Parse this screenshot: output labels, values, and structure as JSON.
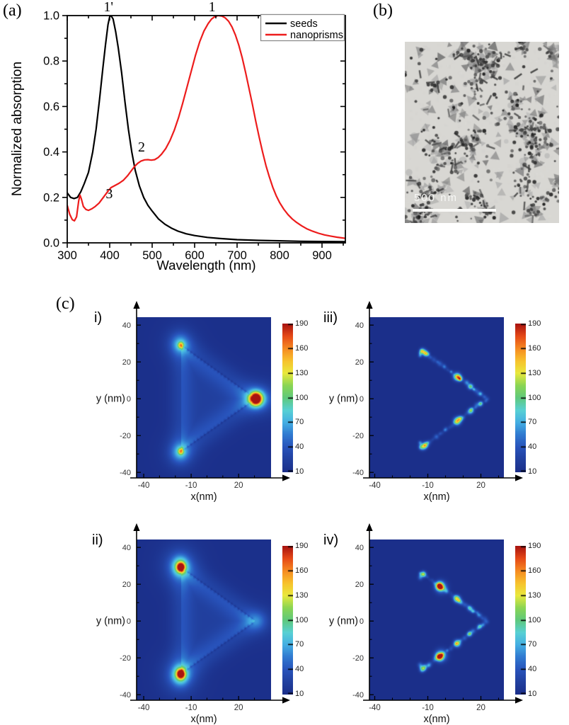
{
  "labels": {
    "a": "(a)",
    "b": "(b)",
    "c": "(c)",
    "i": "i)",
    "ii": "ii)",
    "iii": "iii)",
    "iv": "iv)"
  },
  "panel_b": {
    "scale_bar": "500 nm"
  },
  "colormap": {
    "stops": [
      [
        10,
        "#1b2f8a"
      ],
      [
        25,
        "#21409f"
      ],
      [
        40,
        "#2853bb"
      ],
      [
        55,
        "#3079d0"
      ],
      [
        70,
        "#44aee3"
      ],
      [
        85,
        "#58d0d4"
      ],
      [
        100,
        "#5fc97c"
      ],
      [
        115,
        "#8ad554"
      ],
      [
        130,
        "#e9e93d"
      ],
      [
        145,
        "#f7c22d"
      ],
      [
        160,
        "#f68a21"
      ],
      [
        175,
        "#e64917"
      ],
      [
        190,
        "#a81410"
      ]
    ]
  },
  "chart_data": [
    {
      "id": "absorption-spectra",
      "type": "line",
      "xlabel": "Wavelength (nm)",
      "ylabel": "Normalized absorption",
      "xlim": [
        300,
        955
      ],
      "ylim": [
        0.0,
        1.0
      ],
      "x_ticks": [
        300,
        400,
        500,
        600,
        700,
        800,
        900
      ],
      "x_minor_ticks": [
        350,
        450,
        550,
        650,
        750,
        850,
        950
      ],
      "y_ticks": [
        0.0,
        0.2,
        0.4,
        0.6,
        0.8,
        1.0
      ],
      "y_minor_ticks": [
        0.1,
        0.3,
        0.5,
        0.7,
        0.9
      ],
      "grid": false,
      "legend": {
        "position": "top-right",
        "entries": [
          {
            "label": "seeds",
            "color": "#000000"
          },
          {
            "label": "nanoprisms",
            "color": "#ed1c1c"
          }
        ]
      },
      "annotations": [
        {
          "text": "1'",
          "wavelength": 397,
          "position": "above-top-axis"
        },
        {
          "text": "1",
          "wavelength": 641,
          "position": "above-top-axis"
        },
        {
          "text": "2",
          "wavelength": 475,
          "absorption": 0.42,
          "position": "in-plot"
        },
        {
          "text": "3",
          "wavelength": 399,
          "absorption": 0.215,
          "position": "in-plot"
        }
      ],
      "series": [
        {
          "name": "seeds",
          "color": "#000000",
          "points": [
            [
              300,
              0.22
            ],
            [
              308,
              0.2
            ],
            [
              316,
              0.195
            ],
            [
              324,
              0.2
            ],
            [
              332,
              0.225
            ],
            [
              340,
              0.26
            ],
            [
              350,
              0.31
            ],
            [
              360,
              0.4
            ],
            [
              368,
              0.5
            ],
            [
              376,
              0.63
            ],
            [
              384,
              0.77
            ],
            [
              390,
              0.87
            ],
            [
              396,
              0.96
            ],
            [
              400,
              0.995
            ],
            [
              403,
              1.0
            ],
            [
              408,
              0.985
            ],
            [
              414,
              0.93
            ],
            [
              420,
              0.86
            ],
            [
              428,
              0.75
            ],
            [
              436,
              0.62
            ],
            [
              444,
              0.5
            ],
            [
              452,
              0.4
            ],
            [
              460,
              0.32
            ],
            [
              470,
              0.25
            ],
            [
              480,
              0.2
            ],
            [
              490,
              0.165
            ],
            [
              500,
              0.14
            ],
            [
              515,
              0.105
            ],
            [
              530,
              0.082
            ],
            [
              545,
              0.065
            ],
            [
              560,
              0.052
            ],
            [
              580,
              0.04
            ],
            [
              600,
              0.032
            ],
            [
              630,
              0.024
            ],
            [
              660,
              0.019
            ],
            [
              700,
              0.014
            ],
            [
              750,
              0.011
            ],
            [
              800,
              0.009
            ],
            [
              850,
              0.007
            ],
            [
              900,
              0.006
            ],
            [
              955,
              0.005
            ]
          ]
        },
        {
          "name": "nanoprisms",
          "color": "#ed1c1c",
          "points": [
            [
              300,
              0.165
            ],
            [
              306,
              0.125
            ],
            [
              312,
              0.102
            ],
            [
              317,
              0.097
            ],
            [
              322,
              0.115
            ],
            [
              327,
              0.185
            ],
            [
              330,
              0.21
            ],
            [
              333,
              0.195
            ],
            [
              338,
              0.16
            ],
            [
              344,
              0.147
            ],
            [
              350,
              0.143
            ],
            [
              358,
              0.15
            ],
            [
              366,
              0.16
            ],
            [
              375,
              0.175
            ],
            [
              385,
              0.2
            ],
            [
              395,
              0.225
            ],
            [
              403,
              0.243
            ],
            [
              412,
              0.252
            ],
            [
              422,
              0.262
            ],
            [
              432,
              0.275
            ],
            [
              442,
              0.295
            ],
            [
              450,
              0.315
            ],
            [
              458,
              0.335
            ],
            [
              466,
              0.35
            ],
            [
              474,
              0.36
            ],
            [
              482,
              0.365
            ],
            [
              490,
              0.366
            ],
            [
              498,
              0.364
            ],
            [
              506,
              0.366
            ],
            [
              514,
              0.375
            ],
            [
              522,
              0.39
            ],
            [
              532,
              0.415
            ],
            [
              542,
              0.45
            ],
            [
              552,
              0.495
            ],
            [
              562,
              0.55
            ],
            [
              572,
              0.615
            ],
            [
              582,
              0.685
            ],
            [
              592,
              0.755
            ],
            [
              602,
              0.825
            ],
            [
              612,
              0.885
            ],
            [
              622,
              0.932
            ],
            [
              632,
              0.965
            ],
            [
              640,
              0.985
            ],
            [
              648,
              0.996
            ],
            [
              656,
              1.0
            ],
            [
              664,
              0.998
            ],
            [
              672,
              0.99
            ],
            [
              680,
              0.975
            ],
            [
              688,
              0.95
            ],
            [
              696,
              0.915
            ],
            [
              704,
              0.87
            ],
            [
              712,
              0.815
            ],
            [
              720,
              0.75
            ],
            [
              728,
              0.68
            ],
            [
              736,
              0.61
            ],
            [
              744,
              0.535
            ],
            [
              752,
              0.465
            ],
            [
              760,
              0.4
            ],
            [
              768,
              0.34
            ],
            [
              776,
              0.29
            ],
            [
              784,
              0.245
            ],
            [
              792,
              0.208
            ],
            [
              800,
              0.178
            ],
            [
              810,
              0.148
            ],
            [
              820,
              0.124
            ],
            [
              830,
              0.105
            ],
            [
              840,
              0.09
            ],
            [
              852,
              0.075
            ],
            [
              864,
              0.062
            ],
            [
              878,
              0.051
            ],
            [
              892,
              0.042
            ],
            [
              906,
              0.035
            ],
            [
              920,
              0.03
            ],
            [
              935,
              0.025
            ],
            [
              955,
              0.02
            ]
          ]
        }
      ]
    },
    {
      "id": "c-i",
      "type": "heatmap",
      "variant": "smooth",
      "seed": 5,
      "xlabel": "x(nm)",
      "ylabel": "y (nm)",
      "x_ticks": [
        -40,
        -10,
        20
      ],
      "x_minor_ticks": [
        -30,
        -20,
        0,
        10,
        30
      ],
      "y_ticks": [
        -40,
        -20,
        0,
        20,
        40
      ],
      "y_minor_ticks": [
        -30,
        -10,
        10,
        30
      ],
      "x_range": [
        -44.5,
        40.5
      ],
      "y_range": [
        -43,
        44.3
      ],
      "colorbar": {
        "min": 10,
        "max": 190,
        "ticks": [
          10,
          40,
          70,
          100,
          130,
          160,
          190
        ]
      },
      "triangle": {
        "A": [
          -16.5,
          29
        ],
        "B": [
          -16.5,
          -28.5
        ],
        "C": [
          30.5,
          0
        ]
      },
      "hotspots": [
        {
          "x": 30.8,
          "y": 0,
          "a": 175,
          "sx": 2.3,
          "sy": 2.1
        },
        {
          "x": 31.3,
          "y": 0,
          "a": 70,
          "sx": 4.2,
          "sy": 3.4
        },
        {
          "x": 32,
          "y": 0,
          "a": 28,
          "sx": 9,
          "sy": 6
        },
        {
          "x": -16.5,
          "y": 29,
          "a": 85,
          "sx": 1.2,
          "sy": 1.2
        },
        {
          "x": -16.7,
          "y": 29.4,
          "a": 35,
          "sx": 3.8,
          "sy": 3.5
        },
        {
          "x": -17,
          "y": 29.7,
          "a": 20,
          "sx": 7,
          "sy": 6.5
        },
        {
          "x": -16.5,
          "y": -28.5,
          "a": 85,
          "sx": 1.2,
          "sy": 1.2
        },
        {
          "x": -16.7,
          "y": -28.9,
          "a": 35,
          "sx": 3.8,
          "sy": 3.5
        },
        {
          "x": -17,
          "y": -29.2,
          "a": 20,
          "sx": 7,
          "sy": 6.5
        }
      ]
    },
    {
      "id": "c-iii",
      "type": "heatmap",
      "variant": "speckle",
      "seed": 9,
      "xlabel": "x(nm)",
      "ylabel": "y (nm)",
      "x_ticks": [
        -40,
        -10,
        20
      ],
      "x_minor_ticks": [
        -30,
        -20,
        0,
        10,
        30
      ],
      "y_ticks": [
        -40,
        -20,
        0,
        20,
        40
      ],
      "y_minor_ticks": [
        -30,
        -10,
        10,
        30
      ],
      "x_range": [
        -43,
        33
      ],
      "y_range": [
        -43,
        44.3
      ],
      "colorbar": {
        "min": 10,
        "max": 190,
        "ticks": [
          10,
          40,
          70,
          100,
          130,
          160,
          190
        ]
      },
      "triangle": {
        "A": [
          -14,
          26.6
        ],
        "B": [
          -14,
          -27
        ],
        "C": [
          23.5,
          0
        ]
      },
      "hotspots": [
        {
          "edge": "AC",
          "t": 0.03,
          "a": 60,
          "s": 1.2
        },
        {
          "edge": "AC",
          "t": 0.08,
          "a": 85,
          "s": 1.1
        },
        {
          "edge": "AC",
          "t": 0.55,
          "a": 120,
          "s": 1.4
        },
        {
          "edge": "AC",
          "t": 0.59,
          "a": 60,
          "s": 1.0
        },
        {
          "edge": "AC",
          "t": 0.75,
          "a": 80,
          "s": 1.1
        },
        {
          "edge": "AC",
          "t": 0.9,
          "a": 50,
          "s": 0.9
        },
        {
          "edge": "BC",
          "t": 0.03,
          "a": 60,
          "s": 1.2
        },
        {
          "edge": "BC",
          "t": 0.08,
          "a": 85,
          "s": 1.1
        },
        {
          "edge": "BC",
          "t": 0.55,
          "a": 120,
          "s": 1.4
        },
        {
          "edge": "BC",
          "t": 0.6,
          "a": 65,
          "s": 1.0
        },
        {
          "edge": "BC",
          "t": 0.76,
          "a": 80,
          "s": 1.1
        },
        {
          "edge": "BC",
          "t": 0.9,
          "a": 50,
          "s": 0.9
        }
      ]
    },
    {
      "id": "c-ii",
      "type": "heatmap",
      "variant": "smooth",
      "seed": 6,
      "xlabel": "x(nm)",
      "ylabel": "y (nm)",
      "x_ticks": [
        -40,
        -10,
        20
      ],
      "x_minor_ticks": [
        -30,
        -20,
        0,
        10,
        30
      ],
      "y_ticks": [
        -40,
        -20,
        0,
        20,
        40
      ],
      "y_minor_ticks": [
        -30,
        -10,
        10,
        30
      ],
      "x_range": [
        -44.5,
        40.5
      ],
      "y_range": [
        -43,
        44.3
      ],
      "colorbar": {
        "min": 10,
        "max": 190,
        "ticks": [
          10,
          40,
          70,
          100,
          130,
          160,
          190
        ]
      },
      "triangle": {
        "A": [
          -16.5,
          29
        ],
        "B": [
          -16.5,
          -28.5
        ],
        "C": [
          30.5,
          0
        ]
      },
      "hotspots": [
        {
          "x": -16.5,
          "y": 29.2,
          "a": 170,
          "sx": 1.6,
          "sy": 1.6
        },
        {
          "x": -16.8,
          "y": 29.6,
          "a": 65,
          "sx": 3.6,
          "sy": 3.6
        },
        {
          "x": -17.1,
          "y": 29.9,
          "a": 30,
          "sx": 8,
          "sy": 7.5
        },
        {
          "x": -16.5,
          "y": -28.7,
          "a": 170,
          "sx": 1.6,
          "sy": 1.6
        },
        {
          "x": -16.8,
          "y": -29.1,
          "a": 65,
          "sx": 3.6,
          "sy": 3.6
        },
        {
          "x": -17.1,
          "y": -29.4,
          "a": 30,
          "sx": 8,
          "sy": 7.5
        },
        {
          "x": 30.5,
          "y": 0,
          "a": 24,
          "sx": 4.5,
          "sy": 3.5
        },
        {
          "x": 31,
          "y": 0,
          "a": 12,
          "sx": 9,
          "sy": 6
        }
      ]
    },
    {
      "id": "c-iv",
      "type": "heatmap",
      "variant": "speckle",
      "seed": 13,
      "xlabel": "x(nm)",
      "ylabel": "y (nm)",
      "x_ticks": [
        -40,
        -10,
        20
      ],
      "x_minor_ticks": [
        -30,
        -20,
        0,
        10,
        30
      ],
      "y_ticks": [
        -40,
        -20,
        0,
        20,
        40
      ],
      "y_minor_ticks": [
        -30,
        -10,
        10,
        30
      ],
      "x_range": [
        -43,
        33
      ],
      "y_range": [
        -43,
        44.3
      ],
      "colorbar": {
        "min": 10,
        "max": 190,
        "ticks": [
          10,
          40,
          70,
          100,
          130,
          160,
          190
        ]
      },
      "triangle": {
        "A": [
          -14,
          26.6
        ],
        "B": [
          -14,
          -27
        ],
        "C": [
          23.5,
          0
        ]
      },
      "hotspots": [
        {
          "edge": "AC",
          "t": 0.04,
          "a": 70,
          "s": 1.1
        },
        {
          "edge": "AC",
          "t": 0.28,
          "a": 155,
          "s": 1.4
        },
        {
          "edge": "AC",
          "t": 0.31,
          "a": 70,
          "s": 2.2
        },
        {
          "edge": "AC",
          "t": 0.55,
          "a": 115,
          "s": 1.3
        },
        {
          "edge": "AC",
          "t": 0.74,
          "a": 65,
          "s": 1.0
        },
        {
          "edge": "AC",
          "t": 0.88,
          "a": 40,
          "s": 0.9
        },
        {
          "edge": "BC",
          "t": 0.04,
          "a": 70,
          "s": 1.1
        },
        {
          "edge": "BC",
          "t": 0.28,
          "a": 155,
          "s": 1.4
        },
        {
          "edge": "BC",
          "t": 0.31,
          "a": 70,
          "s": 2.2
        },
        {
          "edge": "BC",
          "t": 0.55,
          "a": 115,
          "s": 1.3
        },
        {
          "edge": "BC",
          "t": 0.74,
          "a": 65,
          "s": 1.0
        },
        {
          "edge": "BC",
          "t": 0.88,
          "a": 40,
          "s": 0.9
        }
      ]
    }
  ]
}
